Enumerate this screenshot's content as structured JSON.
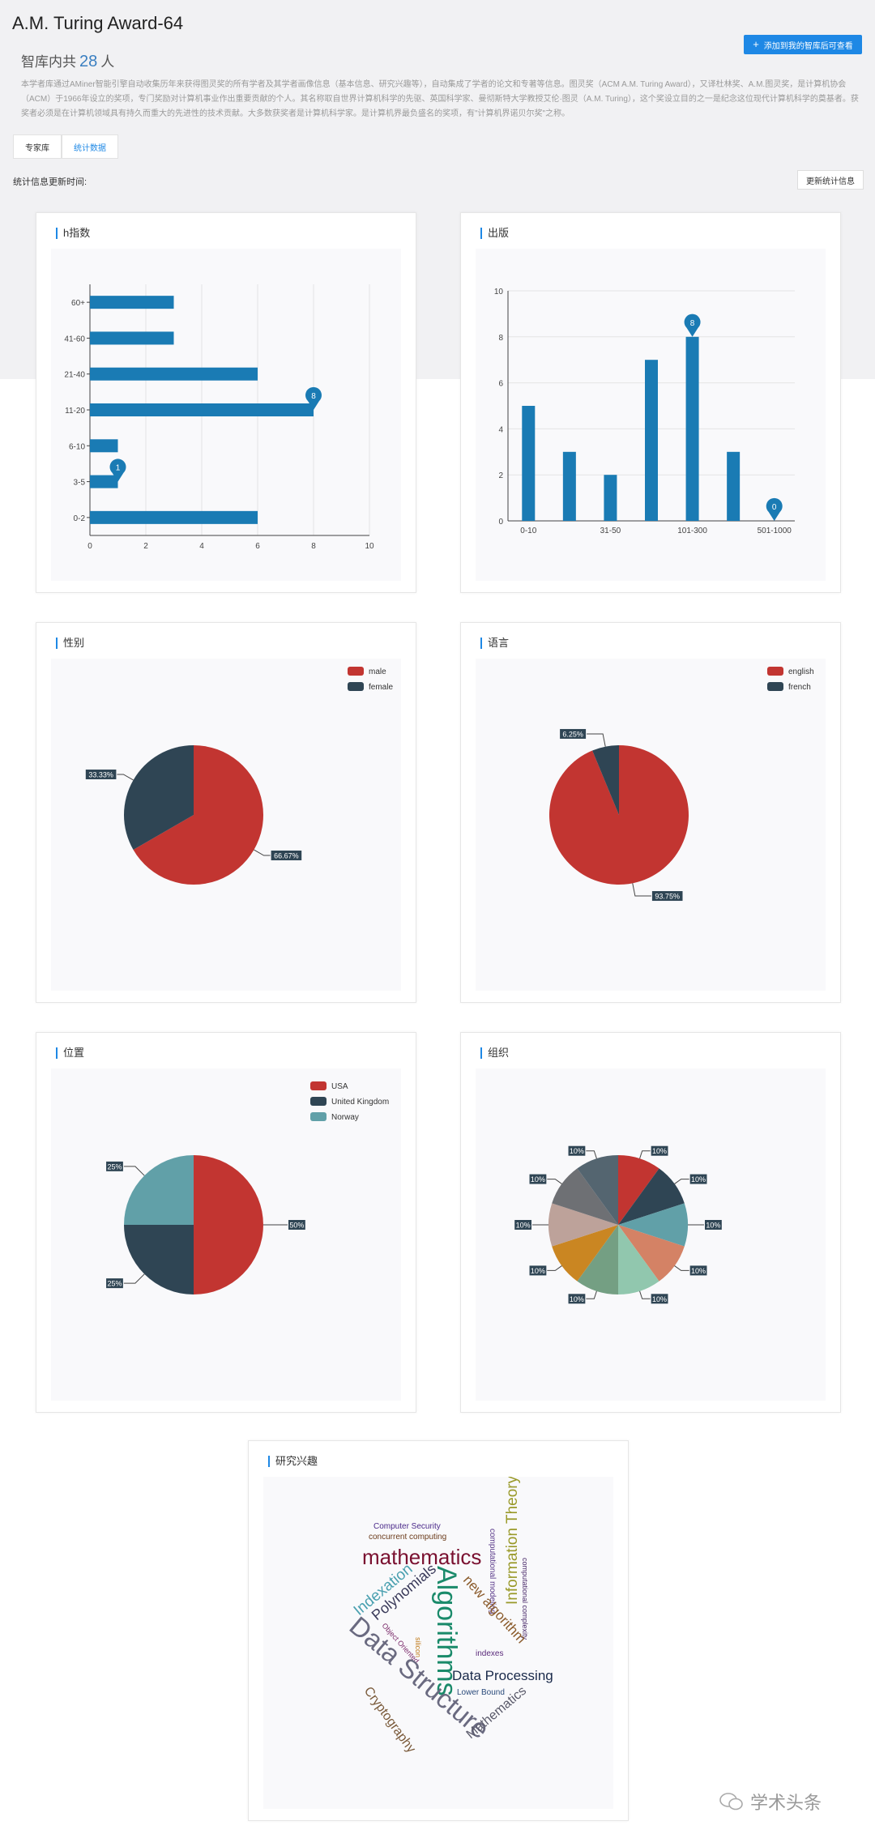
{
  "header": {
    "title": "A.M. Turing Award-64",
    "count_prefix": "智库内共",
    "count_value": "28",
    "count_suffix": "人",
    "description": "本学者库通过AMiner智能引擎自动收集历年来获得图灵奖的所有学者及其学者画像信息（基本信息、研究兴趣等），自动集成了学者的论文和专著等信息。图灵奖（ACM A.M. Turing Award），又译杜林奖、A.M.图灵奖，是计算机协会（ACM）于1966年设立的奖项，专门奖励对计算机事业作出重要贡献的个人。其名称取自世界计算机科学的先驱、英国科学家、曼彻斯特大学教授艾伦·图灵（A.M. Turing），这个奖设立目的之一是纪念这位现代计算机科学的奠基者。获奖者必须是在计算机领域具有持久而重大的先进性的技术贡献。大多数获奖者是计算机科学家。是计算机界最负盛名的奖项，有\"计算机界诺贝尔奖\"之称。",
    "add_button": "添加到我的智库后可查看",
    "add_icon": "plus-icon"
  },
  "tabs": [
    {
      "label": "专家库",
      "active": false
    },
    {
      "label": "统计数据",
      "active": true
    }
  ],
  "stats": {
    "update_label": "统计信息更新时间:",
    "update_button": "更新统计信息"
  },
  "colors": {
    "bar": "#1a7bb4",
    "red": "#c23531",
    "navy": "#2f4554",
    "teal": "#61a0a8",
    "accent": "#1e88e5"
  },
  "charts": {
    "hindex": {
      "title": "h指数",
      "chart_data": {
        "type": "bar",
        "orientation": "horizontal",
        "categories": [
          "0-2",
          "3-5",
          "6-10",
          "11-20",
          "21-40",
          "41-60",
          "60+"
        ],
        "values": [
          6,
          1,
          1,
          8,
          6,
          3,
          3
        ],
        "xlim": [
          0,
          10
        ],
        "xticks": [
          "0",
          "2",
          "4",
          "6",
          "8",
          "10"
        ],
        "markers": [
          {
            "category": "11-20",
            "label": "8"
          },
          {
            "category": "3-5",
            "label": "1"
          }
        ]
      }
    },
    "publications": {
      "title": "出版",
      "chart_data": {
        "type": "bar",
        "values": [
          5,
          3,
          2,
          7,
          8,
          3,
          0
        ],
        "xtick_labels": [
          "0-10",
          "",
          "31-50",
          "",
          "101-300",
          "",
          "501-1000"
        ],
        "ylim": [
          0,
          10
        ],
        "yticks": [
          "0",
          "2",
          "4",
          "6",
          "8",
          "10"
        ],
        "markers": [
          {
            "index": 4,
            "label": "8"
          },
          {
            "index": 6,
            "label": "0"
          }
        ]
      }
    },
    "gender": {
      "title": "性别",
      "chart_data": {
        "type": "pie",
        "legend": "top-right",
        "slices": [
          {
            "name": "male",
            "value": 66.67,
            "label": "66.67%",
            "color": "#c23531"
          },
          {
            "name": "female",
            "value": 33.33,
            "label": "33.33%",
            "color": "#2f4554"
          }
        ]
      }
    },
    "language": {
      "title": "语言",
      "chart_data": {
        "type": "pie",
        "legend": "top-right",
        "slices": [
          {
            "name": "english",
            "value": 93.75,
            "label": "93.75%",
            "color": "#c23531"
          },
          {
            "name": "french",
            "value": 6.25,
            "label": "6.25%",
            "color": "#2f4554"
          }
        ]
      }
    },
    "location": {
      "title": "位置",
      "chart_data": {
        "type": "pie",
        "legend": "top-right",
        "slices": [
          {
            "name": "USA",
            "value": 50,
            "label": "50%",
            "color": "#c23531"
          },
          {
            "name": "United Kingdom",
            "value": 25,
            "label": "25%",
            "color": "#2f4554"
          },
          {
            "name": "Norway",
            "value": 25,
            "label": "25%",
            "color": "#61a0a8"
          }
        ]
      }
    },
    "organization": {
      "title": "组织",
      "chart_data": {
        "type": "pie",
        "slices": [
          {
            "value": 10,
            "label": "10%",
            "color": "#c23531"
          },
          {
            "value": 10,
            "label": "10%",
            "color": "#2f4554"
          },
          {
            "value": 10,
            "label": "10%",
            "color": "#61a0a8"
          },
          {
            "value": 10,
            "label": "10%",
            "color": "#d48265"
          },
          {
            "value": 10,
            "label": "10%",
            "color": "#91c7ae"
          },
          {
            "value": 10,
            "label": "10%",
            "color": "#749f83"
          },
          {
            "value": 10,
            "label": "10%",
            "color": "#ca8622"
          },
          {
            "value": 10,
            "label": "10%",
            "color": "#bda29a"
          },
          {
            "value": 10,
            "label": "10%",
            "color": "#6e7074"
          },
          {
            "value": 10,
            "label": "10%",
            "color": "#546570"
          }
        ]
      }
    }
  },
  "interests": {
    "title": "研究兴趣",
    "words": [
      {
        "text": "Computer Security",
        "color": "#4b2a8a"
      },
      {
        "text": "concurrent computing",
        "color": "#6a3a1a"
      },
      {
        "text": "mathematics",
        "color": "#7a1030"
      },
      {
        "text": "computational modeling",
        "color": "#5a3a8a"
      },
      {
        "text": "Information Theory",
        "color": "#9a9a2a"
      },
      {
        "text": "computational complexity",
        "color": "#4a2a6a"
      },
      {
        "text": "Indexation",
        "color": "#4aa0b0"
      },
      {
        "text": "Polynomials",
        "color": "#3a3a5a"
      },
      {
        "text": "Algorithms",
        "color": "#1a8a6a"
      },
      {
        "text": "new algorithm",
        "color": "#8a5a2a"
      },
      {
        "text": "Object Oriented",
        "color": "#7a2a6a"
      },
      {
        "text": "silicon",
        "color": "#c07a1a"
      },
      {
        "text": "indexes",
        "color": "#5a2a7a"
      },
      {
        "text": "Data Structure",
        "color": "#6a6a80"
      },
      {
        "text": "Data Processing",
        "color": "#1a2a4a"
      },
      {
        "text": "Lower Bound",
        "color": "#2a4a7a"
      },
      {
        "text": "Cryptography",
        "color": "#7a5a3a"
      },
      {
        "text": "Mathematics",
        "color": "#5a5a6a"
      }
    ]
  },
  "watermark": "学术头条"
}
